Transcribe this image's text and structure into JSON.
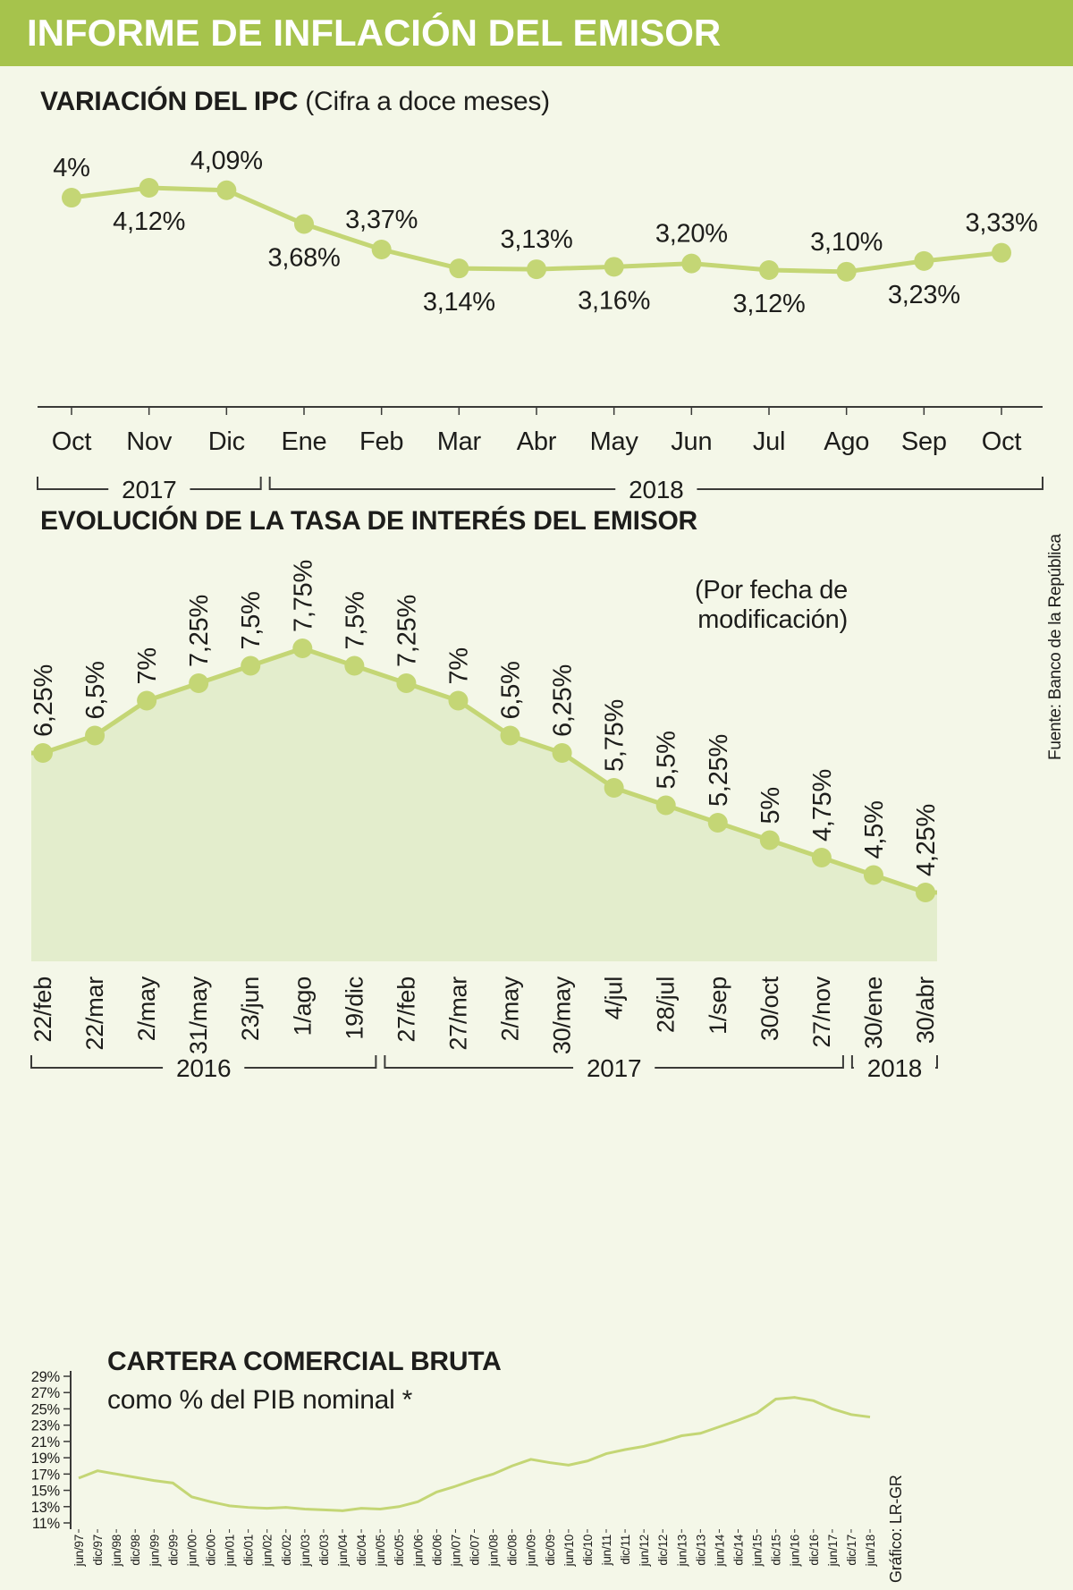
{
  "page": {
    "colors": {
      "background": "#f4f7e8",
      "accent": "#a6c34c",
      "line": "#c4d675",
      "fill": "#e3edcc",
      "axis": "#3a3a38",
      "text": "#1d1d1b",
      "header_text": "#ffffff"
    }
  },
  "header": {
    "title": "INFORME DE INFLACIÓN DEL EMISOR"
  },
  "chart_data": [
    {
      "id": "ipc",
      "type": "line",
      "title": "VARIACIÓN DEL IPC",
      "subtitle": "(Cifra a doce meses)",
      "categories": [
        "Oct",
        "Nov",
        "Dic",
        "Ene",
        "Feb",
        "Mar",
        "Abr",
        "May",
        "Jun",
        "Jul",
        "Ago",
        "Sep",
        "Oct"
      ],
      "values": [
        4.0,
        4.12,
        4.09,
        3.68,
        3.37,
        3.14,
        3.13,
        3.16,
        3.2,
        3.12,
        3.1,
        3.23,
        3.33
      ],
      "point_labels": [
        "4%",
        "4,12%",
        "4,09%",
        "3,68%",
        "3,37%",
        "3,14%",
        "3,13%",
        "3,16%",
        "3,20%",
        "3,12%",
        "3,10%",
        "3,23%",
        "3,33%"
      ],
      "label_side": [
        "above",
        "below",
        "above",
        "below",
        "above",
        "below",
        "above",
        "below",
        "above",
        "below",
        "above",
        "below",
        "above"
      ],
      "year_groups": [
        {
          "label": "2017",
          "start": 0,
          "end": 2
        },
        {
          "label": "2018",
          "start": 3,
          "end": 12
        }
      ],
      "grid": false,
      "legend": "none"
    },
    {
      "id": "tasa-interes",
      "type": "area",
      "title": "EVOLUCIÓN DE LA TASA DE INTERÉS DEL EMISOR",
      "annotation": "(Por fecha de modificación)",
      "source": "Fuente: Banco de la República",
      "categories": [
        "22/feb",
        "22/mar",
        "2/may",
        "31/may",
        "23/jun",
        "1/ago",
        "19/dic",
        "27/feb",
        "27/mar",
        "2/may",
        "30/may",
        "4/jul",
        "28/jul",
        "1/sep",
        "30/oct",
        "27/nov",
        "30/ene",
        "30/abr"
      ],
      "values": [
        6.25,
        6.5,
        7.0,
        7.25,
        7.5,
        7.75,
        7.5,
        7.25,
        7.0,
        6.5,
        6.25,
        5.75,
        5.5,
        5.25,
        5.0,
        4.75,
        4.5,
        4.25
      ],
      "point_labels": [
        "6,25%",
        "6,5%",
        "7%",
        "7,25%",
        "7,5%",
        "7,75%",
        "7,5%",
        "7,25%",
        "7%",
        "6,5%",
        "6,25%",
        "5,75%",
        "5,5%",
        "5,25%",
        "5%",
        "4,75%",
        "4,5%",
        "4,25%"
      ],
      "year_groups": [
        {
          "label": "2016",
          "start": 0,
          "end": 6
        },
        {
          "label": "2017",
          "start": 7,
          "end": 15
        },
        {
          "label": "2018",
          "start": 16,
          "end": 17
        }
      ],
      "grid": false,
      "legend": "none"
    },
    {
      "id": "cartera-comercial",
      "type": "line",
      "title": "CARTERA COMERCIAL BRUTA",
      "subtitle": "como % del PIB nominal *",
      "credit": "Gráfico: LR-GR",
      "ylim": [
        11,
        29
      ],
      "y_ticks": [
        "29%",
        "27%",
        "25%",
        "23%",
        "21%",
        "19%",
        "17%",
        "15%",
        "13%",
        "11%"
      ],
      "categories": [
        "jun/97",
        "dic/97",
        "jun/98",
        "dic/98",
        "jun/99",
        "dic/99",
        "jun/00",
        "dic/00",
        "jun/01",
        "dic/01",
        "jun/02",
        "dic/02",
        "jun/03",
        "dic/03",
        "jun/04",
        "dic/04",
        "jun/05",
        "dic/05",
        "jun/06",
        "dic/06",
        "jun/07",
        "dic/07",
        "jun/08",
        "dic/08",
        "jun/09",
        "dic/09",
        "jun/10",
        "dic/10",
        "jun/11",
        "dic/11",
        "jun/12",
        "dic/12",
        "jun/13",
        "dic/13",
        "jun/14",
        "dic/14",
        "jun/15",
        "dic/15",
        "jun/16",
        "dic/16",
        "jun/17",
        "dic/17",
        "jun/18"
      ],
      "values": [
        16.5,
        17.4,
        17.0,
        16.6,
        16.2,
        15.9,
        14.2,
        13.6,
        13.1,
        12.9,
        12.8,
        12.9,
        12.7,
        12.6,
        12.5,
        12.8,
        12.7,
        13.0,
        13.6,
        14.8,
        15.5,
        16.3,
        17.0,
        18.0,
        18.8,
        18.4,
        18.1,
        18.6,
        19.5,
        20.0,
        20.4,
        21.0,
        21.7,
        22.0,
        22.8,
        23.6,
        24.5,
        26.2,
        26.4,
        26.0,
        25.0,
        24.3,
        24.0
      ],
      "grid": false,
      "legend": "none"
    }
  ]
}
